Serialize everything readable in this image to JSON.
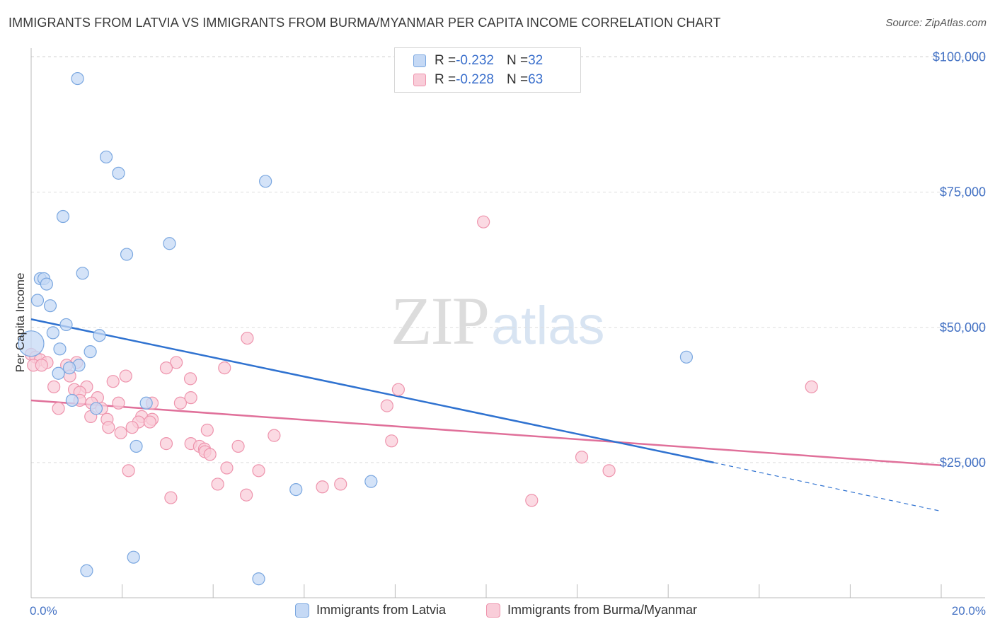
{
  "header": {
    "title": "IMMIGRANTS FROM LATVIA VS IMMIGRANTS FROM BURMA/MYANMAR PER CAPITA INCOME CORRELATION CHART",
    "source": "Source: ZipAtlas.com"
  },
  "watermark": {
    "zip": "ZIP",
    "atlas": "atlas"
  },
  "legend": {
    "rows": [
      {
        "r_label": "R = ",
        "r_value": "-0.232",
        "n_label": "N = ",
        "n_value": "32"
      },
      {
        "r_label": "R = ",
        "r_value": "-0.228",
        "n_label": "N = ",
        "n_value": "63"
      }
    ]
  },
  "colors": {
    "latvia_fill": "#c5d9f5",
    "latvia_stroke": "#7aa7e0",
    "latvia_line": "#2f72d0",
    "burma_fill": "#f9cdd9",
    "burma_stroke": "#ee94ad",
    "burma_line": "#e0709a",
    "tick_label": "#4472c4",
    "grid": "#dddddd"
  },
  "chart_data": {
    "type": "scatter",
    "title": "IMMIGRANTS FROM LATVIA VS IMMIGRANTS FROM BURMA/MYANMAR PER CAPITA INCOME CORRELATION CHART",
    "xlabel": "",
    "ylabel": "Per Capita Income",
    "xlim": [
      0,
      20
    ],
    "ylim": [
      0,
      105000
    ],
    "x_tick_labels": [
      "0.0%",
      "20.0%"
    ],
    "y_ticks": [
      25000,
      50000,
      75000,
      100000
    ],
    "y_tick_labels": [
      "$25,000",
      "$50,000",
      "$75,000",
      "$100,000"
    ],
    "grid": true,
    "legend_position": "top-center",
    "series": [
      {
        "name": "Immigrants from Latvia",
        "r": -0.232,
        "n": 32,
        "trend": {
          "x0": 0,
          "y0": 51500,
          "x1": 15.0,
          "y1": 25000,
          "dashed_to_x": 20,
          "dashed_to_y": 16000
        },
        "points": [
          [
            1.02,
            96000
          ],
          [
            1.65,
            81500
          ],
          [
            1.92,
            78500
          ],
          [
            5.15,
            77000
          ],
          [
            0.7,
            70500
          ],
          [
            3.04,
            65500
          ],
          [
            2.1,
            63500
          ],
          [
            1.13,
            60000
          ],
          [
            0.2,
            59000
          ],
          [
            0.28,
            59000
          ],
          [
            0.34,
            58000
          ],
          [
            0.14,
            55000
          ],
          [
            0.42,
            54000
          ],
          [
            0.77,
            50500
          ],
          [
            0.48,
            49000
          ],
          [
            1.5,
            48500
          ],
          [
            0.0,
            47000
          ],
          [
            0.63,
            46000
          ],
          [
            1.3,
            45500
          ],
          [
            14.4,
            44500
          ],
          [
            1.05,
            43000
          ],
          [
            0.84,
            42500
          ],
          [
            0.6,
            41500
          ],
          [
            2.53,
            36000
          ],
          [
            0.9,
            36500
          ],
          [
            1.43,
            35000
          ],
          [
            2.31,
            28000
          ],
          [
            5.82,
            20000
          ],
          [
            7.47,
            21500
          ],
          [
            2.25,
            7500
          ],
          [
            1.22,
            5000
          ],
          [
            5.0,
            3500
          ]
        ]
      },
      {
        "name": "Immigrants from Burma/Myanmar",
        "r": -0.228,
        "n": 63,
        "trend": {
          "x0": 0,
          "y0": 36500,
          "x1": 20,
          "y1": 24500
        },
        "points": [
          [
            9.94,
            69500
          ],
          [
            4.75,
            48000
          ],
          [
            0.0,
            45000
          ],
          [
            0.1,
            44500
          ],
          [
            0.2,
            44000
          ],
          [
            0.35,
            43500
          ],
          [
            0.05,
            43000
          ],
          [
            0.23,
            43000
          ],
          [
            1.0,
            43500
          ],
          [
            3.19,
            43500
          ],
          [
            0.78,
            43000
          ],
          [
            2.97,
            42500
          ],
          [
            4.25,
            42500
          ],
          [
            2.08,
            41000
          ],
          [
            0.85,
            41000
          ],
          [
            1.8,
            40000
          ],
          [
            3.5,
            40500
          ],
          [
            0.5,
            39000
          ],
          [
            1.22,
            39000
          ],
          [
            0.95,
            38500
          ],
          [
            1.07,
            38000
          ],
          [
            8.07,
            38500
          ],
          [
            17.15,
            39000
          ],
          [
            1.46,
            37000
          ],
          [
            2.66,
            36000
          ],
          [
            1.92,
            36000
          ],
          [
            3.28,
            36000
          ],
          [
            3.51,
            37000
          ],
          [
            1.33,
            36000
          ],
          [
            7.82,
            35500
          ],
          [
            0.6,
            35000
          ],
          [
            1.55,
            35000
          ],
          [
            1.07,
            36500
          ],
          [
            2.43,
            33500
          ],
          [
            2.66,
            33000
          ],
          [
            1.31,
            33500
          ],
          [
            1.67,
            33000
          ],
          [
            2.36,
            32500
          ],
          [
            2.61,
            32500
          ],
          [
            1.7,
            31500
          ],
          [
            2.22,
            31500
          ],
          [
            1.97,
            30500
          ],
          [
            3.87,
            31000
          ],
          [
            5.34,
            30000
          ],
          [
            2.97,
            28500
          ],
          [
            3.51,
            28500
          ],
          [
            3.7,
            28000
          ],
          [
            3.81,
            27500
          ],
          [
            4.55,
            28000
          ],
          [
            3.82,
            27000
          ],
          [
            3.93,
            26500
          ],
          [
            7.92,
            29000
          ],
          [
            12.1,
            26000
          ],
          [
            4.3,
            24000
          ],
          [
            2.14,
            23500
          ],
          [
            5.0,
            23500
          ],
          [
            12.7,
            23500
          ],
          [
            6.8,
            21000
          ],
          [
            6.4,
            20500
          ],
          [
            4.1,
            21000
          ],
          [
            3.07,
            18500
          ],
          [
            4.73,
            19000
          ],
          [
            11.0,
            18000
          ]
        ]
      }
    ]
  },
  "bottom_legend": {
    "latvia": "Immigrants from Latvia",
    "burma": "Immigrants from Burma/Myanmar"
  }
}
